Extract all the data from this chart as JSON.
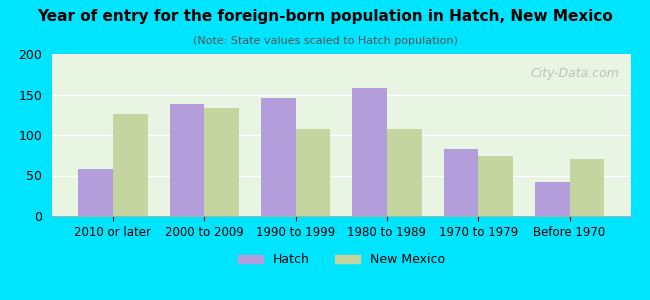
{
  "title": "Year of entry for the foreign-born population in Hatch, New Mexico",
  "subtitle": "(Note: State values scaled to Hatch population)",
  "categories": [
    "2010 or later",
    "2000 to 2009",
    "1990 to 1999",
    "1980 to 1989",
    "1970 to 1979",
    "Before 1970"
  ],
  "hatch_values": [
    58,
    138,
    146,
    158,
    83,
    42
  ],
  "nm_values": [
    126,
    133,
    108,
    108,
    74,
    70
  ],
  "hatch_color": "#b39ddb",
  "nm_color": "#c5d5a0",
  "background_outer": "#00e5ff",
  "background_inner": "#e8f5e3",
  "ylim": [
    0,
    200
  ],
  "yticks": [
    0,
    50,
    100,
    150,
    200
  ],
  "bar_width": 0.38,
  "legend_hatch_label": "Hatch",
  "legend_nm_label": "New Mexico",
  "watermark": "City-Data.com"
}
